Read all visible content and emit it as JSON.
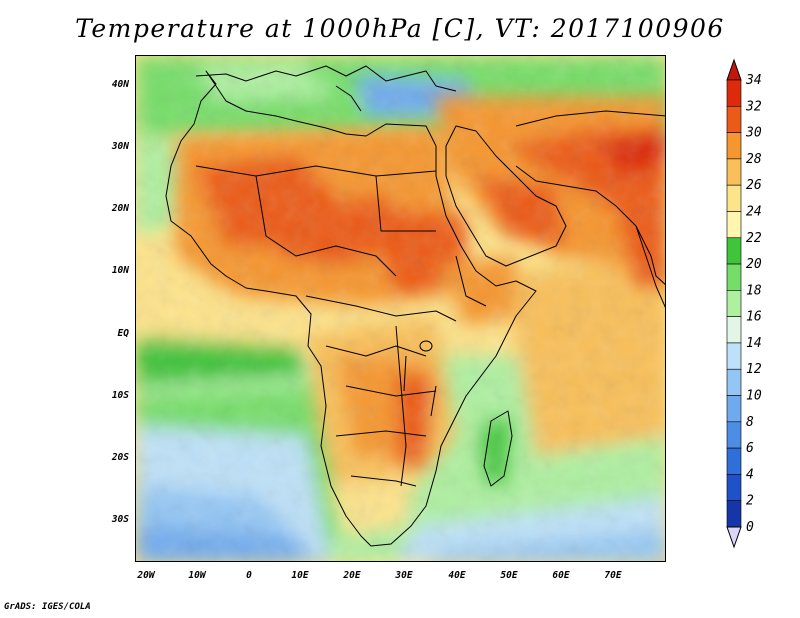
{
  "title": "Temperature at 1000hPa [C], VT: 2017100906",
  "credit": "GrADS: IGES/COLA",
  "map": {
    "lon_range": [
      -21,
      80
    ],
    "lat_range": [
      -37,
      45
    ],
    "lat_ticks": [
      {
        "lat": 40,
        "label": "40N"
      },
      {
        "lat": 30,
        "label": "30N"
      },
      {
        "lat": 20,
        "label": "20N"
      },
      {
        "lat": 10,
        "label": "10N"
      },
      {
        "lat": 0,
        "label": "EQ"
      },
      {
        "lat": -10,
        "label": "10S"
      },
      {
        "lat": -20,
        "label": "20S"
      },
      {
        "lat": -30,
        "label": "30S"
      }
    ],
    "lon_ticks": [
      {
        "lon": -20,
        "label": "20W"
      },
      {
        "lon": -10,
        "label": "10W"
      },
      {
        "lon": 0,
        "label": "0"
      },
      {
        "lon": 10,
        "label": "10E"
      },
      {
        "lon": 20,
        "label": "20E"
      },
      {
        "lon": 30,
        "label": "30E"
      },
      {
        "lon": 40,
        "label": "40E"
      },
      {
        "lon": 50,
        "label": "50E"
      },
      {
        "lon": 60,
        "label": "60E"
      },
      {
        "lon": 70,
        "label": "70E"
      }
    ]
  },
  "colorbar": {
    "labels": [
      "0",
      "2",
      "4",
      "6",
      "8",
      "10",
      "12",
      "14",
      "16",
      "18",
      "20",
      "22",
      "24",
      "26",
      "28",
      "30",
      "32",
      "34"
    ],
    "colors": [
      "#0a1f7a",
      "#1536a8",
      "#1f52c8",
      "#2f6fd9",
      "#4c8de6",
      "#6faaee",
      "#93c6f4",
      "#bde1f8",
      "#e2f6e8",
      "#aef0a0",
      "#74de68",
      "#3fc43a",
      "#fff6b0",
      "#fde38a",
      "#f9bf59",
      "#f6962f",
      "#ec5a18",
      "#dd2a0a"
    ],
    "over_color": "#c4160a",
    "under_color": "#dcd6f6"
  }
}
